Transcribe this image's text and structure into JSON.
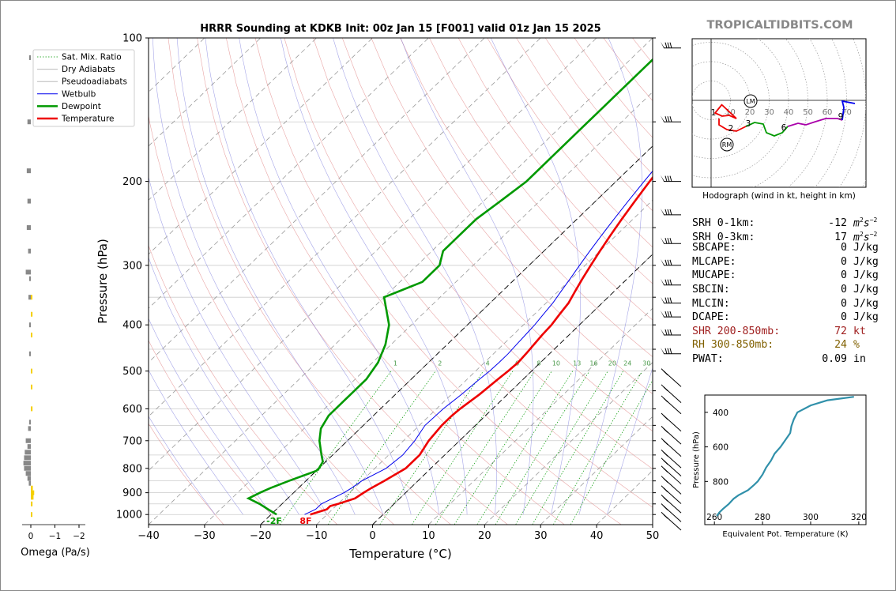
{
  "title": "HRRR Sounding at KDKB Init: 00z Jan 15 [F001] valid 01z Jan 15 2025",
  "watermark": "TROPICALTIDBITS.COM",
  "legend": [
    "Sat. Mix. Ratio",
    "Dry Adiabats",
    "Pseudoadiabats",
    "Wetbulb",
    "Dewpoint",
    "Temperature"
  ],
  "colors": {
    "temperature": "#ee0000",
    "dewpoint": "#009900",
    "wetbulb": "#0000ee",
    "mixratio": "#009900",
    "dry": "#bbbbbb",
    "pseudo": "#bbbbbb",
    "thetae": "#3090aa",
    "omega_neg": "#888888",
    "omega_pos": "#f5d000"
  },
  "surface_labels": {
    "dewpoint": "-2F",
    "temperature": "8F"
  },
  "omega": {
    "xlabel": "Omega (Pa/s)",
    "ticks": [
      "0",
      "−1",
      "−2"
    ]
  },
  "hodograph": {
    "caption": "Hodograph (wind in kt, height in km)",
    "ring_labels": [
      "10",
      "20",
      "30",
      "40",
      "50",
      "60",
      "70"
    ],
    "markers": [
      "LM",
      "RM"
    ],
    "height_labels": [
      "1",
      "2",
      "3",
      "6",
      "9"
    ]
  },
  "thetae_panel": {
    "xlabel": "Equivalent Pot. Temperature (K)",
    "ylabel": "Pressure (hPa)",
    "xticks": [
      "260",
      "280",
      "300",
      "320"
    ],
    "yticks": [
      "400",
      "600",
      "800"
    ]
  },
  "stats": [
    {
      "label": "SRH 0-1km:",
      "value": "-12",
      "unit": "m2s-2",
      "color": "#000000"
    },
    {
      "label": "SRH 0-3km:",
      "value": "17",
      "unit": "m2s-2",
      "color": "#000000"
    },
    {
      "label": "SBCAPE:",
      "value": "0",
      "unit": "J/kg",
      "color": "#000000"
    },
    {
      "label": "MLCAPE:",
      "value": "0",
      "unit": "J/kg",
      "color": "#000000"
    },
    {
      "label": "MUCAPE:",
      "value": "0",
      "unit": "J/kg",
      "color": "#000000"
    },
    {
      "label": "SBCIN:",
      "value": "0",
      "unit": "J/kg",
      "color": "#000000"
    },
    {
      "label": "MLCIN:",
      "value": "0",
      "unit": "J/kg",
      "color": "#000000"
    },
    {
      "label": "DCAPE:",
      "value": "0",
      "unit": "J/kg",
      "color": "#000000"
    },
    {
      "label": "SHR 200-850mb:",
      "value": "72",
      "unit": "kt",
      "color": "#a02020"
    },
    {
      "label": "RH 300-850mb:",
      "value": "24",
      "unit": "%",
      "color": "#806000"
    },
    {
      "label": "PWAT:",
      "value": "0.09",
      "unit": "in",
      "color": "#000000"
    }
  ],
  "chart_data": {
    "type": "line",
    "title": "HRRR Sounding at KDKB Init: 00z Jan 15 [F001] valid 01z Jan 15 2025",
    "xlabel": "Temperature (°C)",
    "ylabel": "Pressure (hPa)",
    "xlim": [
      -40,
      50
    ],
    "ylim": [
      1050,
      100
    ],
    "y_scale": "log",
    "xticks": [
      -40,
      -30,
      -20,
      -10,
      0,
      10,
      20,
      30,
      40,
      50
    ],
    "yticks": [
      100,
      200,
      300,
      400,
      500,
      600,
      700,
      800,
      900,
      1000
    ],
    "mixing_ratio_labels": [
      "1",
      "2",
      "4",
      "6",
      "8",
      "10",
      "13",
      "16",
      "20",
      "24",
      "30",
      "36"
    ],
    "legend_position": "upper-left",
    "series": [
      {
        "name": "Temperature",
        "pressure": [
          1000,
          975,
          960,
          950,
          925,
          900,
          880,
          850,
          800,
          750,
          700,
          650,
          620,
          600,
          560,
          520,
          500,
          480,
          460,
          440,
          420,
          400,
          380,
          360,
          340,
          320,
          300,
          280,
          260,
          240,
          220,
          200,
          180,
          160,
          140,
          120,
          100
        ],
        "temp": [
          -13,
          -11,
          -11,
          -10,
          -8,
          -7.5,
          -7,
          -6,
          -4.5,
          -4.5,
          -5.5,
          -6,
          -6,
          -5.8,
          -5,
          -4.5,
          -4.2,
          -4,
          -4.2,
          -4.5,
          -4.8,
          -5,
          -5.5,
          -6,
          -7,
          -8,
          -9,
          -10,
          -11,
          -12,
          -13,
          -14,
          -15,
          -16,
          -17,
          -18,
          -19
        ],
        "x": [
          -13,
          -11,
          -11,
          -10,
          -8,
          -7.5,
          -7,
          -6,
          -4.5,
          -4.5,
          -5.5,
          -6,
          -6,
          -5.8,
          -5,
          -4.5,
          -4.2,
          -4,
          -4.2,
          -4.5,
          -4.8,
          -5,
          -5.5,
          -6,
          -7,
          -8,
          -9,
          -10,
          -11,
          -12,
          -13,
          -14,
          -15,
          -16,
          -17,
          -18,
          -19
        ]
      },
      {
        "name": "Dewpoint",
        "pressure": [
          1000,
          975,
          950,
          925,
          900,
          880,
          850,
          810,
          800,
          775,
          750,
          700,
          660,
          620,
          560,
          520,
          480,
          440,
          400,
          350,
          325,
          300,
          280,
          260,
          240,
          220,
          200,
          160,
          130,
          110,
          100
        ],
        "x": [
          -19,
          -21.5,
          -24,
          -27,
          -26,
          -25,
          -23,
          -20,
          -20,
          -20.5,
          -22,
          -25,
          -27,
          -28,
          -28,
          -28,
          -29,
          -31,
          -34,
          -40,
          -36,
          -36,
          -38,
          -38,
          -38,
          -37,
          -36,
          -36,
          -36,
          -36,
          -35
        ]
      },
      {
        "name": "Wetbulb",
        "pressure": [
          1000,
          975,
          950,
          925,
          900,
          880,
          850,
          800,
          750,
          700,
          650,
          600,
          560,
          520,
          500,
          480,
          460,
          440,
          420,
          400,
          380,
          360,
          340,
          320,
          300,
          280,
          260,
          240,
          220,
          200,
          180,
          160,
          140,
          120,
          100
        ],
        "x": [
          -14,
          -13,
          -13,
          -12,
          -11,
          -10.5,
          -10,
          -8,
          -7.5,
          -8,
          -9,
          -8.8,
          -8.2,
          -7.8,
          -7.5,
          -7.4,
          -7.4,
          -7.6,
          -7.8,
          -8,
          -8.4,
          -8.8,
          -9.5,
          -10.2,
          -11,
          -11.8,
          -12.6,
          -13.4,
          -14.2,
          -15,
          -15.8,
          -16.6,
          -17.4,
          -18.2,
          -19
        ]
      }
    ]
  }
}
